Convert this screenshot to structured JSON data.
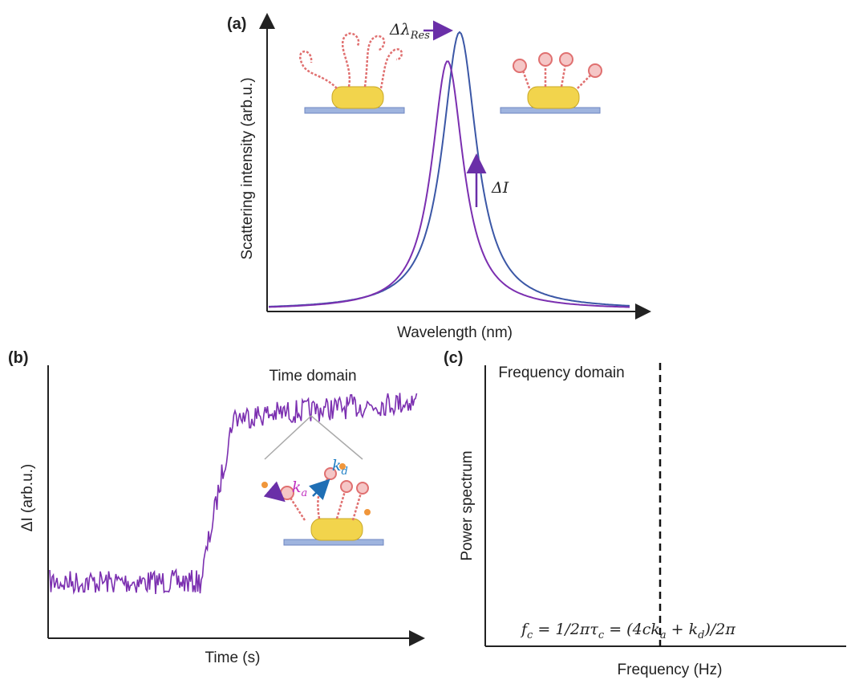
{
  "panel_a": {
    "label": "(a)",
    "shift_label": {
      "main": "Δλ",
      "sub": "Res"
    },
    "delta_label": "ΔI",
    "y_label": "Scattering intensity (arb.u.)",
    "x_label": "Wavelength (nm)"
  },
  "panel_b": {
    "label": "(b)",
    "title": "Time domain",
    "y_label": "ΔI (arb.u.)",
    "x_label": "Time (s)",
    "ka": {
      "main": "k",
      "sub": "a"
    },
    "kd": {
      "main": "k",
      "sub": "d"
    }
  },
  "panel_c": {
    "label": "(c)",
    "title": "Frequency domain",
    "y_label": "Power spectrum",
    "x_label": "Frequency (Hz)",
    "formula": [
      "f",
      "c",
      " = 1/2πτ",
      "c",
      " = (4ck",
      "a",
      " + k",
      "d",
      ")/2π"
    ]
  }
}
